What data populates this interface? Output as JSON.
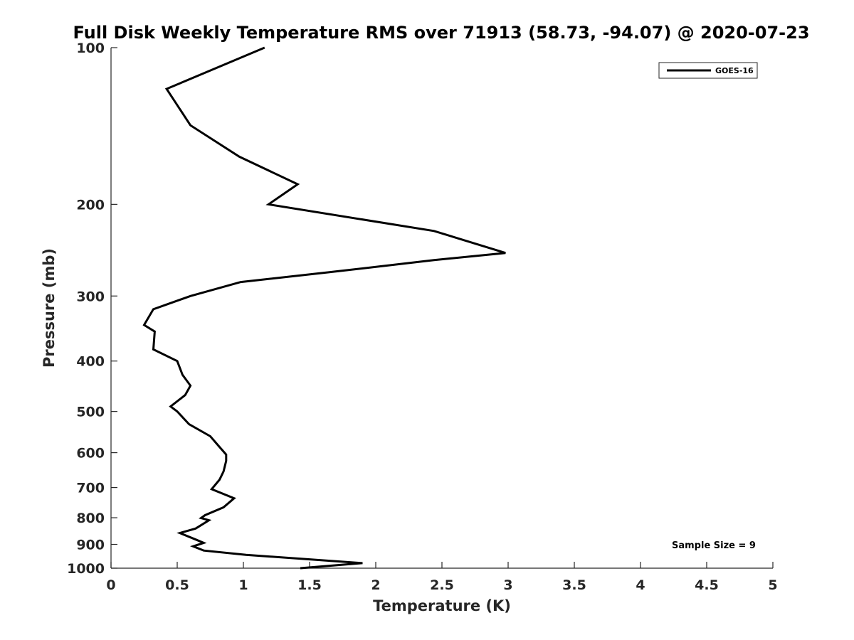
{
  "chart_data": {
    "type": "line",
    "title": "Full Disk Weekly Temperature RMS over 71913 (58.73, -94.07) @ 2020-07-23",
    "xlabel": "Temperature (K)",
    "ylabel": "Pressure (mb)",
    "xlim": [
      0,
      5
    ],
    "ylim": [
      100,
      1000
    ],
    "y_scale": "log",
    "y_reversed": true,
    "x_ticks": [
      0,
      0.5,
      1,
      1.5,
      2,
      2.5,
      3,
      3.5,
      4,
      4.5,
      5
    ],
    "x_tick_labels": [
      "0",
      "0.5",
      "1",
      "1.5",
      "2",
      "2.5",
      "3",
      "3.5",
      "4",
      "4.5",
      "5"
    ],
    "y_ticks": [
      100,
      200,
      300,
      400,
      500,
      600,
      700,
      800,
      900,
      1000
    ],
    "y_tick_labels": [
      "100",
      "200",
      "300",
      "400",
      "500",
      "600",
      "700",
      "800",
      "900",
      "1000"
    ],
    "grid": false,
    "legend_position": "top-right",
    "series": [
      {
        "name": "GOES-16",
        "color": "#000000",
        "x": [
          1.16,
          0.42,
          0.6,
          0.97,
          1.41,
          1.19,
          2.44,
          2.98,
          2.44,
          1.65,
          0.98,
          0.6,
          0.32,
          0.25,
          0.33,
          0.32,
          0.5,
          0.54,
          0.6,
          0.56,
          0.45,
          0.5,
          0.59,
          0.75,
          0.82,
          0.87,
          0.87,
          0.85,
          0.82,
          0.76,
          0.93,
          0.85,
          0.71,
          0.68,
          0.74,
          0.64,
          0.52,
          0.64,
          0.7,
          0.62,
          0.7,
          1.02,
          1.9,
          1.43
        ],
        "y": [
          100,
          120,
          141,
          162,
          183,
          200,
          225,
          248,
          256,
          270,
          282,
          300,
          318,
          341,
          351,
          380,
          400,
          425,
          446,
          465,
          489,
          500,
          529,
          558,
          585,
          605,
          622,
          652,
          676,
          705,
          734,
          764,
          791,
          801,
          809,
          839,
          856,
          881,
          894,
          908,
          925,
          943,
          978,
          1000
        ]
      }
    ],
    "annotation": "Sample Size = 9"
  }
}
